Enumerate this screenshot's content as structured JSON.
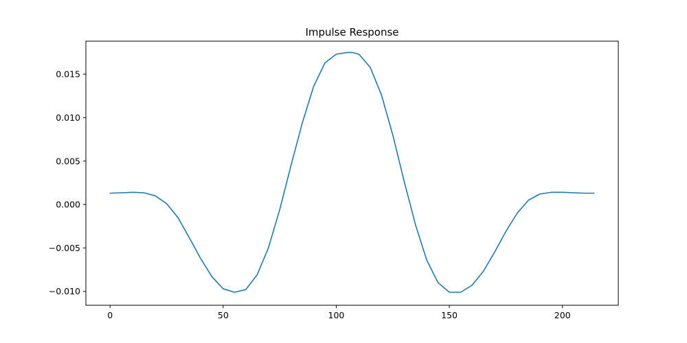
{
  "chart_data": {
    "type": "line",
    "title": "Impulse Response",
    "xlabel": "",
    "ylabel": "",
    "xlim": [
      -10.7,
      224.7
    ],
    "ylim": [
      -0.0116,
      0.0188
    ],
    "x_ticks": [
      0,
      50,
      100,
      150,
      200
    ],
    "x_tick_labels": [
      "0",
      "50",
      "100",
      "150",
      "200"
    ],
    "y_ticks": [
      -0.01,
      -0.005,
      0.0,
      0.005,
      0.01,
      0.015
    ],
    "y_tick_labels": [
      "−0.010",
      "−0.005",
      "0.000",
      "0.005",
      "0.010",
      "0.015"
    ],
    "grid": false,
    "legend": "none",
    "series": [
      {
        "color": "#1f77b4",
        "x": [
          0,
          5,
          10,
          15,
          20,
          25,
          30,
          35,
          40,
          45,
          50,
          55,
          60,
          65,
          70,
          75,
          80,
          85,
          90,
          95,
          100,
          105,
          107,
          110,
          115,
          120,
          125,
          130,
          135,
          140,
          145,
          150,
          155,
          160,
          165,
          170,
          175,
          180,
          185,
          190,
          195,
          200,
          205,
          210,
          214
        ],
        "y": [
          0.0013,
          0.00135,
          0.0014,
          0.00135,
          0.001,
          0.0001,
          -0.0015,
          -0.0038,
          -0.0062,
          -0.0083,
          -0.0097,
          -0.0101,
          -0.0098,
          -0.0081,
          -0.005,
          -0.0006,
          0.0045,
          0.0094,
          0.0136,
          0.0163,
          0.0173,
          0.0175,
          0.0175,
          0.0173,
          0.0158,
          0.0126,
          0.008,
          0.0027,
          -0.0023,
          -0.0064,
          -0.009,
          -0.0101,
          -0.0101,
          -0.0093,
          -0.0077,
          -0.0055,
          -0.0031,
          -0.001,
          0.0005,
          0.0012,
          0.0014,
          0.0014,
          0.00135,
          0.0013,
          0.0013
        ]
      }
    ]
  }
}
